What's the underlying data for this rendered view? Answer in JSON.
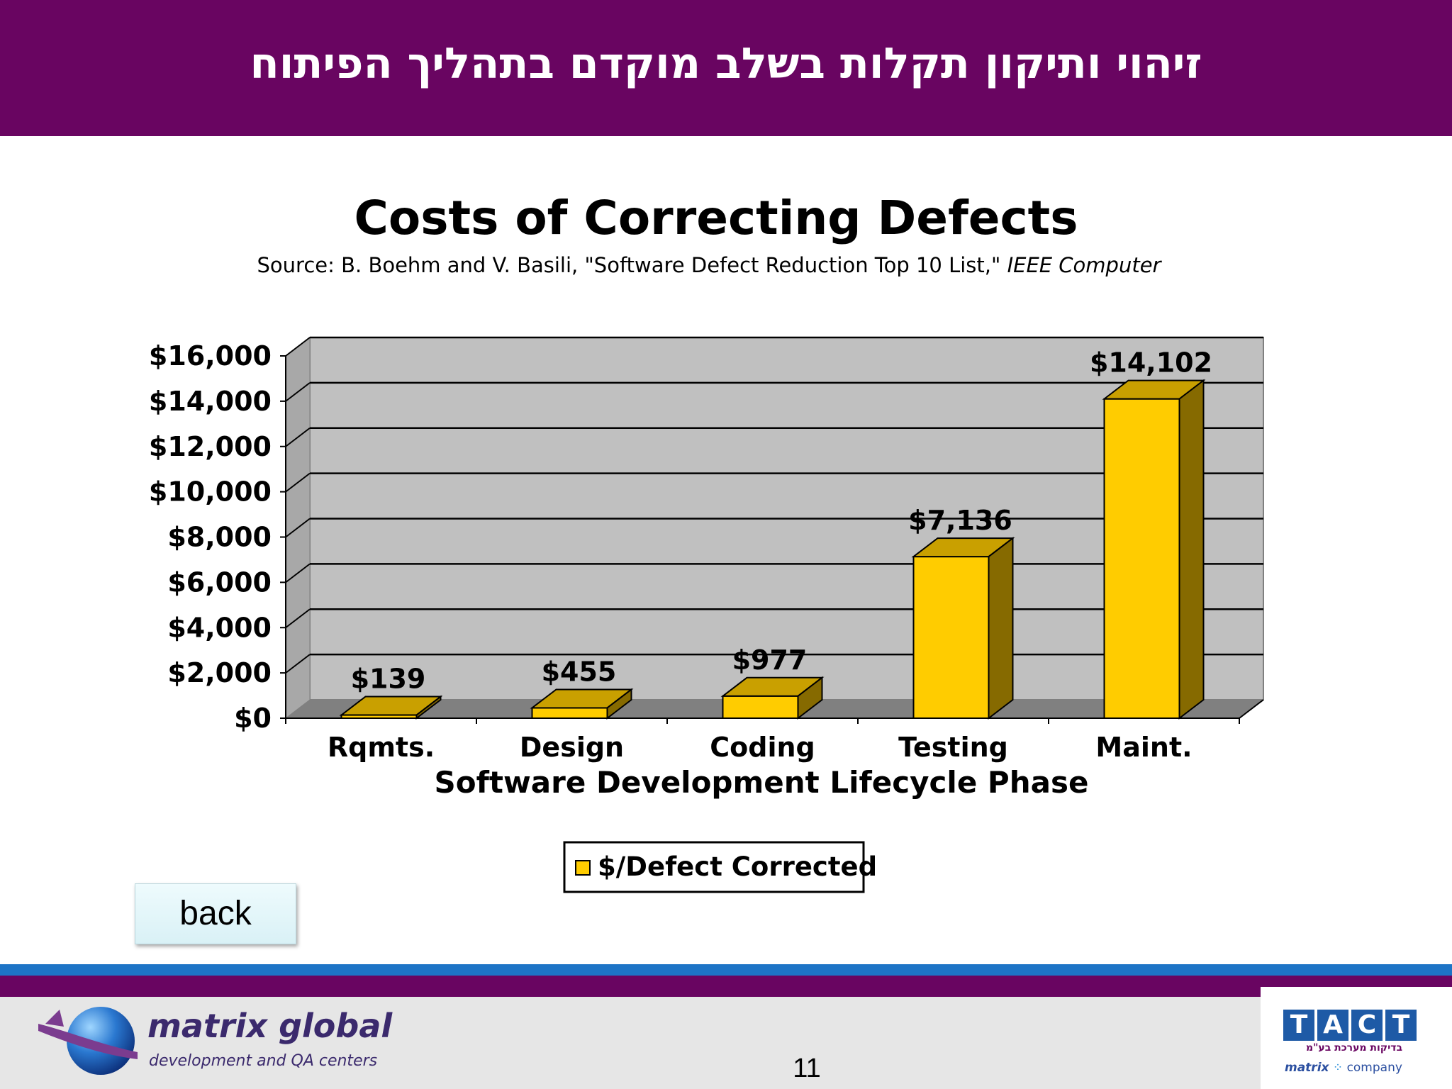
{
  "header": {
    "title": "זיהוי ותיקון תקלות בשלב מוקדם בתהליך הפיתוח"
  },
  "chart_data": {
    "type": "bar",
    "title": "Costs of Correcting Defects",
    "subtitle": "Source: B. Boehm and V. Basili, \"Software Defect Reduction Top 10 List,\"",
    "subtitle_italic": "IEEE Computer",
    "categories": [
      "Rqmts.",
      "Design",
      "Coding",
      "Testing",
      "Maint."
    ],
    "series": [
      {
        "name": "$/Defect Corrected",
        "values": [
          139,
          455,
          977,
          7136,
          14102
        ]
      }
    ],
    "data_labels": [
      "$139",
      "$455",
      "$977",
      "$7,136",
      "$14,102"
    ],
    "xlabel": "Software Development Lifecycle Phase",
    "ylabel": "",
    "ylim": [
      0,
      16000
    ],
    "yticks": [
      0,
      2000,
      4000,
      6000,
      8000,
      10000,
      12000,
      14000,
      16000
    ],
    "ytick_labels": [
      "$0",
      "$2,000",
      "$4,000",
      "$6,000",
      "$8,000",
      "$10,000",
      "$12,000",
      "$14,000",
      "$16,000"
    ],
    "grid": true,
    "legend_position": "bottom",
    "style": "3d",
    "colors": {
      "bar_front": "#ffcc00",
      "bar_top": "#c9a000",
      "bar_side": "#866a00",
      "plot_bg": "#c0c0c0",
      "floor": "#808080"
    }
  },
  "buttons": {
    "back_label": "back"
  },
  "footer": {
    "company_name": "matrix global",
    "company_tagline": "development and QA centers",
    "page_number": "11",
    "tact_letters": [
      "T",
      "A",
      "C",
      "T"
    ],
    "tact_subtitle": "בדיקות מערכת בע\"מ",
    "tact_company_prefix": "matrix",
    "tact_company_suffix": "company"
  },
  "colors": {
    "header_bg": "#690561",
    "stripe_blue": "#1d74c6",
    "footer_bg": "#e6e6e6"
  }
}
